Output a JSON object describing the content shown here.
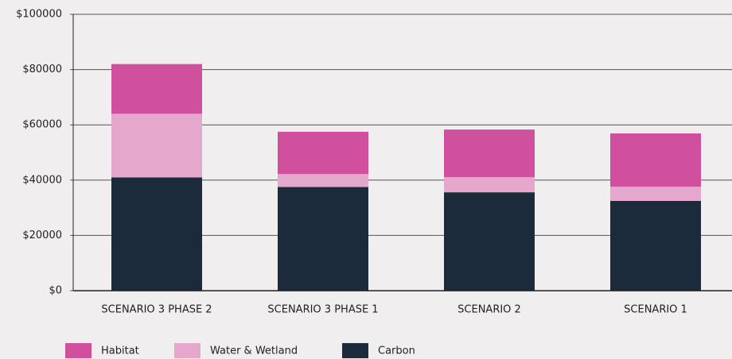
{
  "chart_data": {
    "type": "stacked_bar",
    "categories": [
      "SCENARIO 3 PHASE 2",
      "SCENARIO 3 PHASE 1",
      "SCENARIO 2",
      "SCENARIO 1"
    ],
    "series": [
      {
        "name": "Habitat",
        "color": "#cf509c",
        "values": [
          18000,
          15300,
          17200,
          19300
        ]
      },
      {
        "name": "Water & Wetland",
        "color": "#e4a8cd",
        "values": [
          23000,
          4700,
          5500,
          5100
        ]
      },
      {
        "name": "Carbon",
        "color": "#1c2b3c",
        "values": [
          41000,
          37500,
          35600,
          32500
        ]
      }
    ],
    "ylim": [
      0,
      100000
    ],
    "yticks": [
      {
        "value": 0,
        "label": "$0"
      },
      {
        "value": 20000,
        "label": "$20000"
      },
      {
        "value": 40000,
        "label": "$40000"
      },
      {
        "value": 60000,
        "label": "$60000"
      },
      {
        "value": 80000,
        "label": "$80000"
      },
      {
        "value": 100000,
        "label": "$100000"
      }
    ],
    "grid": true
  }
}
